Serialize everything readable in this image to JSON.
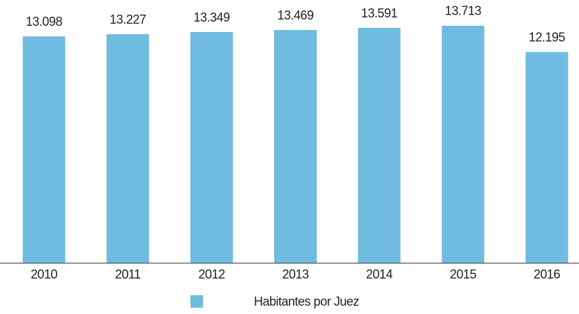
{
  "chart_data": {
    "type": "bar",
    "categories": [
      "2010",
      "2011",
      "2012",
      "2013",
      "2014",
      "2015",
      "2016"
    ],
    "series": [
      {
        "name": "Habitantes por Juez",
        "color": "#6fbce0",
        "values": [
          13098,
          13227,
          13349,
          13469,
          13591,
          13713,
          12195
        ],
        "value_labels": [
          "13.098",
          "13.227",
          "13.349",
          "13.469",
          "13.591",
          "13.713",
          "12.195"
        ]
      }
    ],
    "ylim": [
      0,
      15200
    ]
  }
}
